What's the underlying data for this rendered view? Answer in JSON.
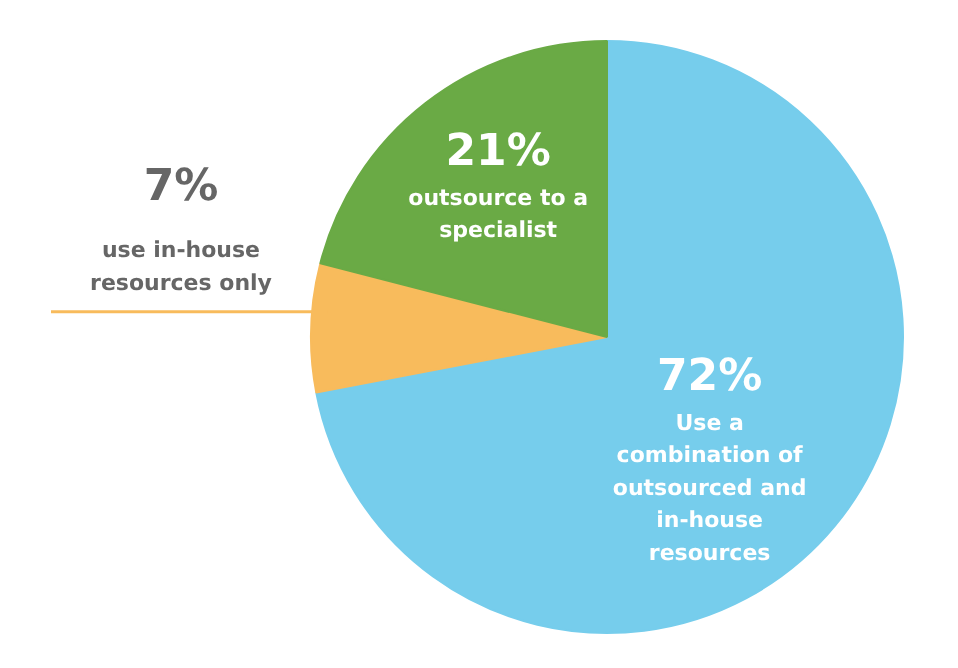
{
  "chart_data": {
    "type": "pie",
    "categories": [
      "Use a combination of outsourced and in-house resources",
      "use in-house resources only",
      "outsource to a specialist"
    ],
    "values": [
      72,
      7,
      21
    ],
    "colors": [
      "#76cdec",
      "#f8bb5c",
      "#6aaa45"
    ],
    "value_labels": [
      "72%",
      "7%",
      "21%"
    ]
  }
}
